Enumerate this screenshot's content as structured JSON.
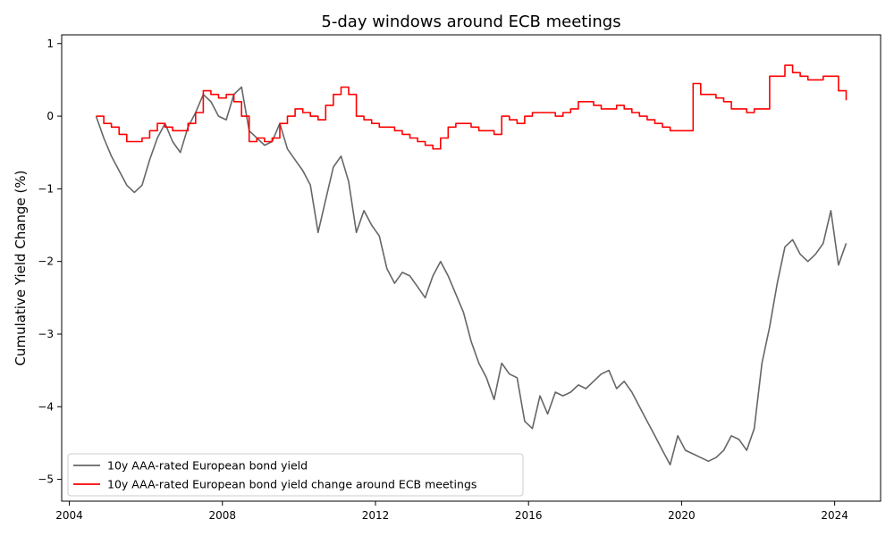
{
  "chart_data": {
    "type": "line",
    "title": "5-day windows around ECB meetings",
    "xlabel": "",
    "ylabel": "Cumulative Yield Change (%)",
    "xlim": [
      2003.8,
      2025.2
    ],
    "ylim": [
      -5.3,
      1.12
    ],
    "xticks": [
      2004,
      2008,
      2012,
      2016,
      2020,
      2024
    ],
    "xtick_labels": [
      "2004",
      "2008",
      "2012",
      "2016",
      "2020",
      "2024"
    ],
    "yticks": [
      1,
      0,
      -1,
      -2,
      -3,
      -4,
      -5
    ],
    "ytick_labels": [
      "1",
      "0",
      "−1",
      "−2",
      "−3",
      "−4",
      "−5"
    ],
    "grid": false,
    "legend_position": "lower-left",
    "colors": {
      "series1": "#666666",
      "series2": "#ff0000"
    },
    "series": [
      {
        "name": "10y AAA-rated European bond yield",
        "style": "line",
        "x": [
          2004.7,
          2004.9,
          2005.1,
          2005.3,
          2005.5,
          2005.7,
          2005.9,
          2006.1,
          2006.3,
          2006.5,
          2006.7,
          2006.9,
          2007.1,
          2007.3,
          2007.5,
          2007.7,
          2007.9,
          2008.1,
          2008.3,
          2008.5,
          2008.7,
          2008.9,
          2009.1,
          2009.3,
          2009.5,
          2009.7,
          2009.9,
          2010.1,
          2010.3,
          2010.5,
          2010.7,
          2010.9,
          2011.1,
          2011.3,
          2011.5,
          2011.7,
          2011.9,
          2012.1,
          2012.3,
          2012.5,
          2012.7,
          2012.9,
          2013.1,
          2013.3,
          2013.5,
          2013.7,
          2013.9,
          2014.1,
          2014.3,
          2014.5,
          2014.7,
          2014.9,
          2015.1,
          2015.3,
          2015.5,
          2015.7,
          2015.9,
          2016.1,
          2016.3,
          2016.5,
          2016.7,
          2016.9,
          2017.1,
          2017.3,
          2017.5,
          2017.7,
          2017.9,
          2018.1,
          2018.3,
          2018.5,
          2018.7,
          2018.9,
          2019.1,
          2019.3,
          2019.5,
          2019.7,
          2019.9,
          2020.1,
          2020.3,
          2020.5,
          2020.7,
          2020.9,
          2021.1,
          2021.3,
          2021.5,
          2021.7,
          2021.9,
          2022.1,
          2022.3,
          2022.5,
          2022.7,
          2022.9,
          2023.1,
          2023.3,
          2023.5,
          2023.7,
          2023.9,
          2024.1,
          2024.3
        ],
        "y": [
          0.0,
          -0.3,
          -0.55,
          -0.75,
          -0.95,
          -1.05,
          -0.95,
          -0.6,
          -0.3,
          -0.1,
          -0.35,
          -0.5,
          -0.15,
          0.05,
          0.3,
          0.2,
          0.0,
          -0.05,
          0.3,
          0.4,
          -0.2,
          -0.3,
          -0.4,
          -0.35,
          -0.1,
          -0.45,
          -0.6,
          -0.75,
          -0.95,
          -1.6,
          -1.15,
          -0.7,
          -0.55,
          -0.9,
          -1.6,
          -1.3,
          -1.5,
          -1.65,
          -2.1,
          -2.3,
          -2.15,
          -2.2,
          -2.35,
          -2.5,
          -2.2,
          -2.0,
          -2.2,
          -2.45,
          -2.7,
          -3.1,
          -3.4,
          -3.6,
          -3.9,
          -3.4,
          -3.55,
          -3.6,
          -4.2,
          -4.3,
          -3.85,
          -4.1,
          -3.8,
          -3.85,
          -3.8,
          -3.7,
          -3.75,
          -3.65,
          -3.55,
          -3.5,
          -3.75,
          -3.65,
          -3.8,
          -4.0,
          -4.2,
          -4.4,
          -4.6,
          -4.8,
          -4.4,
          -4.6,
          -4.65,
          -4.7,
          -4.75,
          -4.7,
          -4.6,
          -4.4,
          -4.45,
          -4.6,
          -4.3,
          -3.4,
          -2.9,
          -2.3,
          -1.8,
          -1.7,
          -1.9,
          -2.0,
          -1.9,
          -1.75,
          -1.3,
          -2.05,
          -1.75
        ]
      },
      {
        "name": "10y AAA-rated European bond yield change around ECB meetings",
        "style": "step",
        "x": [
          2004.7,
          2004.9,
          2005.1,
          2005.3,
          2005.5,
          2005.7,
          2005.9,
          2006.1,
          2006.3,
          2006.5,
          2006.7,
          2006.9,
          2007.1,
          2007.3,
          2007.5,
          2007.7,
          2007.9,
          2008.1,
          2008.3,
          2008.5,
          2008.7,
          2008.9,
          2009.1,
          2009.3,
          2009.5,
          2009.7,
          2009.9,
          2010.1,
          2010.3,
          2010.5,
          2010.7,
          2010.9,
          2011.1,
          2011.3,
          2011.5,
          2011.7,
          2011.9,
          2012.1,
          2012.3,
          2012.5,
          2012.7,
          2012.9,
          2013.1,
          2013.3,
          2013.5,
          2013.7,
          2013.9,
          2014.1,
          2014.3,
          2014.5,
          2014.7,
          2014.9,
          2015.1,
          2015.3,
          2015.5,
          2015.7,
          2015.9,
          2016.1,
          2016.3,
          2016.5,
          2016.7,
          2016.9,
          2017.1,
          2017.3,
          2017.5,
          2017.7,
          2017.9,
          2018.1,
          2018.3,
          2018.5,
          2018.7,
          2018.9,
          2019.1,
          2019.3,
          2019.5,
          2019.7,
          2019.9,
          2020.1,
          2020.3,
          2020.5,
          2020.7,
          2020.9,
          2021.1,
          2021.3,
          2021.5,
          2021.7,
          2021.9,
          2022.1,
          2022.3,
          2022.5,
          2022.7,
          2022.9,
          2023.1,
          2023.3,
          2023.5,
          2023.7,
          2023.9,
          2024.1,
          2024.3
        ],
        "y": [
          0.0,
          -0.1,
          -0.15,
          -0.25,
          -0.35,
          -0.35,
          -0.3,
          -0.2,
          -0.1,
          -0.15,
          -0.2,
          -0.2,
          -0.1,
          0.05,
          0.35,
          0.3,
          0.25,
          0.3,
          0.2,
          0.0,
          -0.35,
          -0.3,
          -0.35,
          -0.3,
          -0.1,
          0.0,
          0.1,
          0.05,
          0.0,
          -0.05,
          0.15,
          0.3,
          0.4,
          0.3,
          0.0,
          -0.05,
          -0.1,
          -0.15,
          -0.15,
          -0.2,
          -0.25,
          -0.3,
          -0.35,
          -0.4,
          -0.45,
          -0.3,
          -0.15,
          -0.1,
          -0.1,
          -0.15,
          -0.2,
          -0.2,
          -0.25,
          0.0,
          -0.05,
          -0.1,
          0.0,
          0.05,
          0.05,
          0.05,
          0.0,
          0.05,
          0.1,
          0.2,
          0.2,
          0.15,
          0.1,
          0.1,
          0.15,
          0.1,
          0.05,
          0.0,
          -0.05,
          -0.1,
          -0.15,
          -0.2,
          -0.2,
          -0.2,
          0.45,
          0.3,
          0.3,
          0.25,
          0.2,
          0.1,
          0.1,
          0.05,
          0.1,
          0.1,
          0.55,
          0.55,
          0.7,
          0.6,
          0.55,
          0.5,
          0.5,
          0.55,
          0.55,
          0.35,
          0.22
        ]
      }
    ]
  }
}
